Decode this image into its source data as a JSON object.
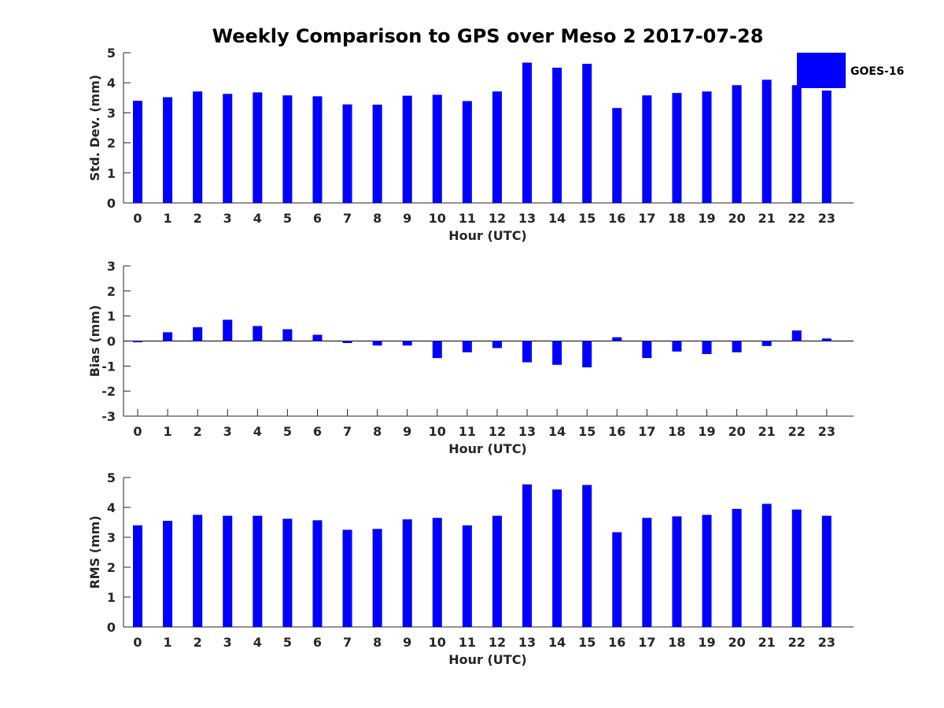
{
  "figure_title": "Weekly Comparison to GPS over Meso 2 2017-07-28",
  "legend": {
    "label": "GOES-16",
    "color": "#0000ff"
  },
  "chart_data": [
    {
      "type": "bar",
      "id": "stddev",
      "title": "Weekly Comparison to GPS over Meso 2 2017-07-28",
      "xlabel": "Hour (UTC)",
      "ylabel": "Std. Dev. (mm)",
      "ylim": [
        0,
        5
      ],
      "yticks": [
        "0",
        "1",
        "2",
        "3",
        "4",
        "5"
      ],
      "categories": [
        "0",
        "1",
        "2",
        "3",
        "4",
        "5",
        "6",
        "7",
        "8",
        "9",
        "10",
        "11",
        "12",
        "13",
        "14",
        "15",
        "16",
        "17",
        "18",
        "19",
        "20",
        "21",
        "22",
        "23"
      ],
      "series": [
        {
          "name": "GOES-16",
          "color": "#0000ff",
          "values": [
            3.4,
            3.52,
            3.71,
            3.63,
            3.68,
            3.58,
            3.55,
            3.28,
            3.27,
            3.57,
            3.6,
            3.39,
            3.71,
            4.67,
            4.5,
            4.63,
            3.16,
            3.58,
            3.66,
            3.71,
            3.92,
            4.1,
            3.92,
            3.74
          ]
        }
      ]
    },
    {
      "type": "bar",
      "id": "bias",
      "xlabel": "Hour (UTC)",
      "ylabel": "Bias (mm)",
      "ylim": [
        -3,
        3
      ],
      "yticks": [
        "-3",
        "-2",
        "-1",
        "0",
        "1",
        "2",
        "3"
      ],
      "zero_line": true,
      "categories": [
        "0",
        "1",
        "2",
        "3",
        "4",
        "5",
        "6",
        "7",
        "8",
        "9",
        "10",
        "11",
        "12",
        "13",
        "14",
        "15",
        "16",
        "17",
        "18",
        "19",
        "20",
        "21",
        "22",
        "23"
      ],
      "series": [
        {
          "name": "GOES-16",
          "color": "#0000ff",
          "values": [
            -0.05,
            0.35,
            0.55,
            0.85,
            0.6,
            0.47,
            0.25,
            -0.08,
            -0.18,
            -0.18,
            -0.68,
            -0.45,
            -0.28,
            -0.85,
            -0.95,
            -1.05,
            0.15,
            -0.68,
            -0.42,
            -0.52,
            -0.45,
            -0.2,
            0.42,
            0.1
          ]
        }
      ]
    },
    {
      "type": "bar",
      "id": "rms",
      "xlabel": "Hour (UTC)",
      "ylabel": "RMS (mm)",
      "ylim": [
        0,
        5
      ],
      "yticks": [
        "0",
        "1",
        "2",
        "3",
        "4",
        "5"
      ],
      "categories": [
        "0",
        "1",
        "2",
        "3",
        "4",
        "5",
        "6",
        "7",
        "8",
        "9",
        "10",
        "11",
        "12",
        "13",
        "14",
        "15",
        "16",
        "17",
        "18",
        "19",
        "20",
        "21",
        "22",
        "23"
      ],
      "series": [
        {
          "name": "GOES-16",
          "color": "#0000ff",
          "values": [
            3.4,
            3.55,
            3.75,
            3.72,
            3.72,
            3.62,
            3.57,
            3.25,
            3.28,
            3.6,
            3.65,
            3.4,
            3.72,
            4.77,
            4.6,
            4.75,
            3.17,
            3.65,
            3.7,
            3.75,
            3.95,
            4.12,
            3.93,
            3.72
          ]
        }
      ]
    }
  ]
}
